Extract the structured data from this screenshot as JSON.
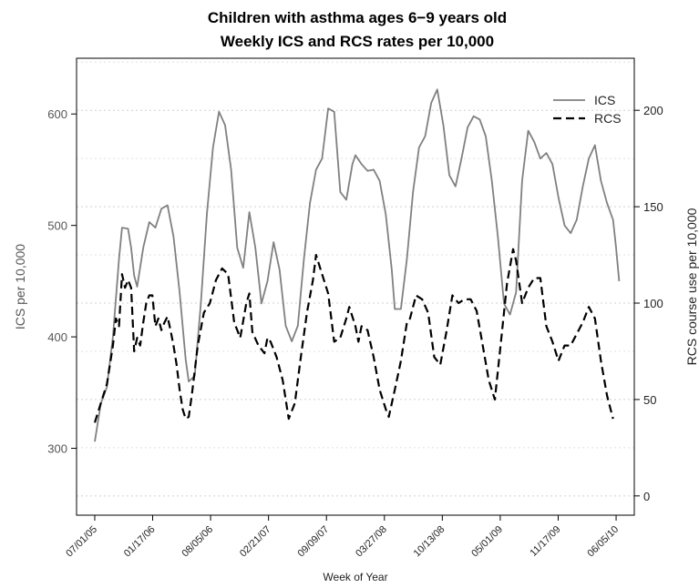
{
  "chart_data": {
    "type": "line",
    "title": "Children with asthma ages 6−9 years old",
    "subtitle": "Weekly ICS and RCS rates per 10,000",
    "xlabel": "Week of Year",
    "ylabel_left": "ICS per 10,000",
    "ylabel_right": "RCS course use per 10,000",
    "x_tick_labels": [
      "07/01/05",
      "01/17/06",
      "08/05/06",
      "02/21/07",
      "09/09/07",
      "03/27/08",
      "10/13/08",
      "05/01/09",
      "11/17/09",
      "06/05/10"
    ],
    "y_left_ticks": [
      300,
      400,
      500,
      600
    ],
    "y_right_ticks": [
      0,
      50,
      100,
      150,
      200
    ],
    "y_left_range": [
      240,
      650
    ],
    "y_right_range": [
      -10,
      227
    ],
    "grid": true,
    "legend_position": "top-right",
    "colors": {
      "ICS": "#808080",
      "RCS": "#000000"
    },
    "series": [
      {
        "name": "ICS",
        "axis": "left",
        "style": "solid",
        "points": [
          [
            0,
            306
          ],
          [
            2,
            340
          ],
          [
            4,
            355
          ],
          [
            6,
            400
          ],
          [
            8,
            470
          ],
          [
            9,
            498
          ],
          [
            11,
            497
          ],
          [
            12,
            480
          ],
          [
            13,
            455
          ],
          [
            14,
            445
          ],
          [
            16,
            480
          ],
          [
            18,
            503
          ],
          [
            20,
            498
          ],
          [
            22,
            515
          ],
          [
            24,
            518
          ],
          [
            26,
            490
          ],
          [
            28,
            440
          ],
          [
            30,
            380
          ],
          [
            31,
            360
          ],
          [
            33,
            365
          ],
          [
            35,
            430
          ],
          [
            37,
            510
          ],
          [
            39,
            570
          ],
          [
            41,
            602
          ],
          [
            43,
            590
          ],
          [
            45,
            550
          ],
          [
            47,
            480
          ],
          [
            49,
            462
          ],
          [
            51,
            512
          ],
          [
            53,
            480
          ],
          [
            55,
            430
          ],
          [
            57,
            450
          ],
          [
            59,
            485
          ],
          [
            61,
            460
          ],
          [
            63,
            410
          ],
          [
            65,
            396
          ],
          [
            67,
            410
          ],
          [
            69,
            470
          ],
          [
            71,
            520
          ],
          [
            73,
            550
          ],
          [
            75,
            560
          ],
          [
            77,
            605
          ],
          [
            79,
            602
          ],
          [
            81,
            530
          ],
          [
            83,
            523
          ],
          [
            85,
            555
          ],
          [
            86,
            563
          ],
          [
            88,
            555
          ],
          [
            90,
            549
          ],
          [
            92,
            550
          ],
          [
            94,
            540
          ],
          [
            96,
            510
          ],
          [
            98,
            460
          ],
          [
            99,
            425
          ],
          [
            101,
            425
          ],
          [
            103,
            470
          ],
          [
            105,
            530
          ],
          [
            107,
            570
          ],
          [
            109,
            580
          ],
          [
            111,
            610
          ],
          [
            113,
            622
          ],
          [
            115,
            590
          ],
          [
            117,
            545
          ],
          [
            119,
            535
          ],
          [
            121,
            560
          ],
          [
            123,
            588
          ],
          [
            125,
            598
          ],
          [
            127,
            595
          ],
          [
            129,
            580
          ],
          [
            131,
            540
          ],
          [
            133,
            490
          ],
          [
            135,
            430
          ],
          [
            137,
            420
          ],
          [
            139,
            440
          ],
          [
            141,
            540
          ],
          [
            143,
            585
          ],
          [
            145,
            575
          ],
          [
            147,
            560
          ],
          [
            149,
            565
          ],
          [
            151,
            555
          ],
          [
            153,
            525
          ],
          [
            155,
            500
          ],
          [
            157,
            493
          ],
          [
            159,
            505
          ],
          [
            161,
            535
          ],
          [
            163,
            560
          ],
          [
            165,
            572
          ],
          [
            167,
            540
          ],
          [
            169,
            520
          ],
          [
            171,
            505
          ],
          [
            172,
            480
          ],
          [
            173,
            450
          ]
        ]
      },
      {
        "name": "RCS",
        "axis": "right",
        "style": "dashed",
        "points": [
          [
            0,
            38
          ],
          [
            2,
            48
          ],
          [
            4,
            58
          ],
          [
            6,
            78
          ],
          [
            7,
            92
          ],
          [
            8,
            88
          ],
          [
            9,
            115
          ],
          [
            10,
            108
          ],
          [
            11,
            112
          ],
          [
            12,
            108
          ],
          [
            13,
            75
          ],
          [
            14,
            82
          ],
          [
            15,
            78
          ],
          [
            16,
            90
          ],
          [
            17,
            100
          ],
          [
            18,
            104
          ],
          [
            19,
            104
          ],
          [
            20,
            88
          ],
          [
            21,
            92
          ],
          [
            22,
            86
          ],
          [
            23,
            90
          ],
          [
            24,
            93
          ],
          [
            25,
            86
          ],
          [
            26,
            78
          ],
          [
            27,
            68
          ],
          [
            28,
            55
          ],
          [
            29,
            45
          ],
          [
            30,
            40
          ],
          [
            31,
            41
          ],
          [
            32,
            52
          ],
          [
            34,
            78
          ],
          [
            36,
            95
          ],
          [
            38,
            100
          ],
          [
            40,
            112
          ],
          [
            42,
            118
          ],
          [
            44,
            115
          ],
          [
            46,
            90
          ],
          [
            48,
            82
          ],
          [
            50,
            100
          ],
          [
            51,
            105
          ],
          [
            52,
            85
          ],
          [
            54,
            78
          ],
          [
            56,
            74
          ],
          [
            57,
            82
          ],
          [
            58,
            80
          ],
          [
            60,
            72
          ],
          [
            62,
            60
          ],
          [
            64,
            40
          ],
          [
            66,
            48
          ],
          [
            68,
            72
          ],
          [
            70,
            95
          ],
          [
            72,
            112
          ],
          [
            73,
            125
          ],
          [
            75,
            115
          ],
          [
            77,
            105
          ],
          [
            79,
            80
          ],
          [
            81,
            82
          ],
          [
            83,
            92
          ],
          [
            84,
            98
          ],
          [
            86,
            88
          ],
          [
            87,
            80
          ],
          [
            88,
            88
          ],
          [
            90,
            86
          ],
          [
            92,
            72
          ],
          [
            94,
            55
          ],
          [
            96,
            45
          ],
          [
            97,
            41
          ],
          [
            99,
            55
          ],
          [
            101,
            70
          ],
          [
            103,
            90
          ],
          [
            104,
            92
          ],
          [
            106,
            104
          ],
          [
            108,
            102
          ],
          [
            110,
            95
          ],
          [
            112,
            72
          ],
          [
            114,
            68
          ],
          [
            116,
            85
          ],
          [
            118,
            104
          ],
          [
            120,
            100
          ],
          [
            122,
            102
          ],
          [
            124,
            102
          ],
          [
            126,
            96
          ],
          [
            128,
            78
          ],
          [
            130,
            60
          ],
          [
            132,
            50
          ],
          [
            134,
            80
          ],
          [
            136,
            110
          ],
          [
            138,
            128
          ],
          [
            139,
            122
          ],
          [
            141,
            100
          ],
          [
            143,
            108
          ],
          [
            145,
            113
          ],
          [
            147,
            113
          ],
          [
            149,
            88
          ],
          [
            151,
            80
          ],
          [
            153,
            70
          ],
          [
            155,
            78
          ],
          [
            157,
            78
          ],
          [
            159,
            84
          ],
          [
            161,
            90
          ],
          [
            163,
            98
          ],
          [
            165,
            92
          ],
          [
            167,
            70
          ],
          [
            169,
            52
          ],
          [
            171,
            40
          ]
        ]
      }
    ]
  }
}
